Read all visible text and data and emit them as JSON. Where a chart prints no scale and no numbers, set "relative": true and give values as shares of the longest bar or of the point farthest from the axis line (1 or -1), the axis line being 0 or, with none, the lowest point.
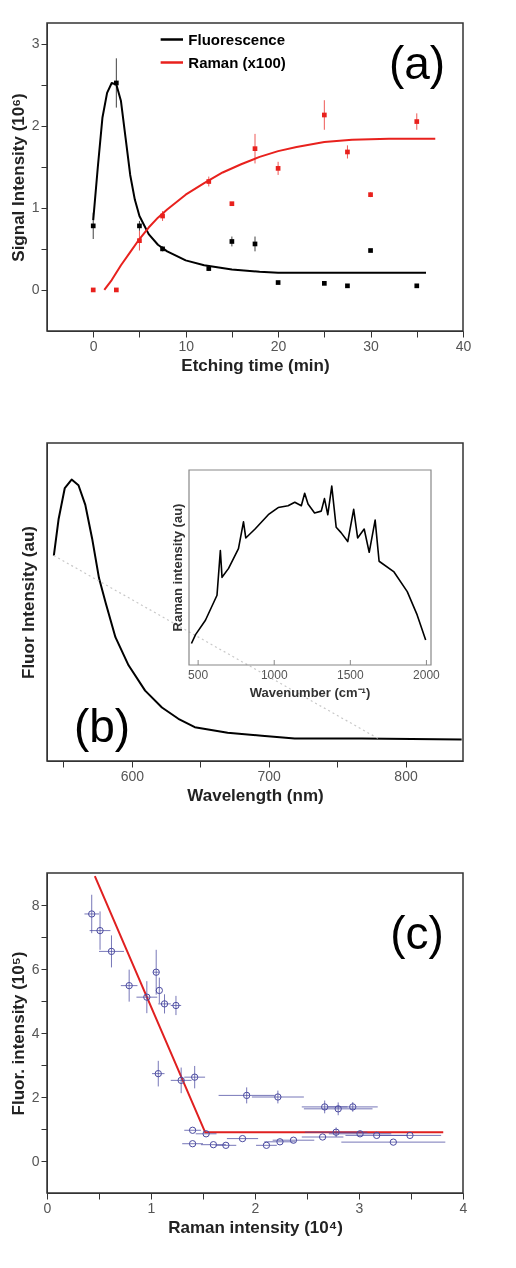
{
  "chart_data": [
    {
      "type": "line",
      "xlabel": "Etching time (min)",
      "ylabel": "Signal Intensity (10⁶)",
      "xlim": [
        -5,
        40
      ],
      "ylim": [
        -0.5,
        3.25
      ],
      "xticks": [
        0,
        {
          "value": 5,
          "label": null
        },
        10,
        {
          "value": 15,
          "label": null
        },
        20,
        {
          "value": 25,
          "label": null
        },
        30,
        {
          "value": 35,
          "label": null
        },
        40
      ],
      "yticks": [
        0,
        {
          "value": 0.5,
          "label": null
        },
        1,
        {
          "value": 1.5,
          "label": null
        },
        2,
        {
          "value": 2.5,
          "label": null
        },
        3
      ],
      "legend": "top",
      "annotations": [
        "(a)"
      ],
      "series": [
        {
          "name": "Fluorescence",
          "type": "line",
          "color": "#000000",
          "x": [
            0,
            0.5,
            1,
            1.5,
            2,
            2.5,
            3,
            3.5,
            4,
            4.5,
            5,
            6,
            7,
            8,
            10,
            12,
            15,
            18,
            20,
            25,
            30,
            36
          ],
          "values": [
            0.85,
            1.5,
            2.1,
            2.4,
            2.52,
            2.5,
            2.3,
            1.85,
            1.4,
            1.1,
            0.9,
            0.68,
            0.55,
            0.47,
            0.36,
            0.3,
            0.25,
            0.22,
            0.21,
            0.21,
            0.21,
            0.21
          ]
        },
        {
          "name": "Raman (x100)",
          "type": "line",
          "color": "#e8211d",
          "x": [
            1.2,
            2,
            3,
            4,
            5,
            6,
            7,
            8,
            10,
            12,
            14,
            16,
            18,
            20,
            22,
            25,
            28,
            32,
            37
          ],
          "values": [
            0,
            0.12,
            0.3,
            0.46,
            0.62,
            0.76,
            0.88,
            0.98,
            1.16,
            1.3,
            1.43,
            1.53,
            1.62,
            1.69,
            1.74,
            1.8,
            1.83,
            1.84,
            1.84
          ]
        },
        {
          "type": "scatter",
          "marker": "square",
          "color": "#000000",
          "x": [
            0,
            2.5,
            5,
            7.5,
            12.5,
            15,
            17.5,
            20,
            25,
            27.5,
            30,
            35
          ],
          "values": [
            0.78,
            2.52,
            0.78,
            0.5,
            0.26,
            0.59,
            0.56,
            0.09,
            0.08,
            0.05,
            0.48,
            0.05
          ],
          "errors": [
            0.16,
            0.3,
            0.06,
            0.03,
            0.03,
            0.06,
            0.09,
            null,
            null,
            null,
            null,
            null
          ]
        },
        {
          "type": "scatter",
          "marker": "square",
          "color": "#e8211d",
          "x": [
            0,
            2.5,
            5,
            7.5,
            12.5,
            15,
            17.5,
            20,
            25,
            27.5,
            30,
            35
          ],
          "values": [
            0,
            0,
            0.6,
            0.9,
            1.32,
            1.05,
            1.72,
            1.48,
            2.13,
            1.68,
            1.16,
            2.05
          ],
          "errors": [
            null,
            null,
            0.12,
            0.06,
            0.06,
            null,
            0.18,
            0.08,
            0.18,
            0.08,
            0.03,
            0.1
          ]
        }
      ]
    },
    {
      "type": "line",
      "relative": true,
      "xlabel": "Wavelength (nm)",
      "ylabel": "Fluor Intensity (au)",
      "xlim": [
        538,
        842
      ],
      "xticks": [
        {
          "value": 550,
          "label": null
        },
        600,
        {
          "value": 650,
          "label": null
        },
        700,
        {
          "value": 750,
          "label": null
        },
        800
      ],
      "annotations": [
        "(b)"
      ],
      "series": [
        {
          "color": "#000000",
          "x": [
            543,
            546.5,
            551,
            556,
            561,
            566,
            571,
            576,
            581,
            588,
            597.6,
            609.7,
            622,
            634,
            646,
            670,
            695,
            719,
            768,
            841
          ],
          "values": [
            0.73,
            0.86,
            0.97,
            1,
            0.98,
            0.91,
            0.79,
            0.65,
            0.56,
            0.44,
            0.34,
            0.25,
            0.19,
            0.15,
            0.12,
            0.1,
            0.09,
            0.08,
            0.08,
            0.076
          ]
        },
        {
          "color": "#c8c8c8",
          "line_style": "dotted",
          "x": [
            543,
            780
          ],
          "values": [
            0.73,
            0.08
          ]
        }
      ]
    },
    {
      "type": "line",
      "relative": true,
      "xlabel": "Wavenumber (cm⁻¹)",
      "ylabel": "Raman intensity (au)",
      "xlim": [
        440,
        2030
      ],
      "xticks": [
        500,
        1000,
        1500,
        2000
      ],
      "series": [
        {
          "color": "#000000",
          "x": [
            456,
            483,
            548,
            624,
            646,
            657,
            700,
            765,
            798,
            813,
            874,
            961,
            1026,
            1091,
            1135,
            1178,
            1200,
            1222,
            1265,
            1309,
            1330,
            1352,
            1378,
            1407,
            1439,
            1483,
            1522,
            1548,
            1591,
            1624,
            1663,
            1689,
            1787,
            1874,
            1939,
            1995
          ],
          "values": [
            0.12,
            0.17,
            0.25,
            0.39,
            0.64,
            0.49,
            0.54,
            0.65,
            0.8,
            0.71,
            0.76,
            0.84,
            0.88,
            0.89,
            0.91,
            0.89,
            0.96,
            0.9,
            0.85,
            0.86,
            0.93,
            0.84,
            1,
            0.77,
            0.74,
            0.69,
            0.87,
            0.71,
            0.76,
            0.63,
            0.81,
            0.58,
            0.52,
            0.41,
            0.28,
            0.14
          ]
        }
      ]
    },
    {
      "type": "scatter",
      "xlabel": "Raman intensity (10⁴)",
      "ylabel": "Fluor. intensity (10⁵)",
      "xlim": [
        0,
        4
      ],
      "ylim": [
        -1,
        9
      ],
      "xticks": [
        0,
        {
          "value": 0.5,
          "label": null
        },
        1,
        {
          "value": 1.5,
          "label": null
        },
        2,
        {
          "value": 2.5,
          "label": null
        },
        3,
        {
          "value": 3.5,
          "label": null
        },
        4
      ],
      "yticks": [
        0,
        {
          "value": 1,
          "label": null
        },
        2,
        {
          "value": 3,
          "label": null
        },
        4,
        {
          "value": 5,
          "label": null
        },
        6,
        {
          "value": 7,
          "label": null
        },
        8
      ],
      "annotations": [
        "(c)"
      ],
      "series": [
        {
          "type": "scatter",
          "marker": "circle",
          "color": "#4a4aa0",
          "x": [
            0.43,
            0.51,
            0.62,
            0.79,
            0.96,
            1.05,
            1.08,
            1.13,
            1.24,
            1.07,
            1.29,
            1.42,
            1.92,
            2.22,
            2.67,
            2.8,
            2.94,
            1.4,
            1.53,
            1.4,
            1.6,
            1.72,
            1.88,
            2.11,
            2.24,
            2.37,
            2.65,
            2.78,
            3.01,
            3.17,
            3.33,
            3.49
          ],
          "values": [
            7.72,
            7.2,
            6.55,
            5.48,
            5.12,
            5.9,
            5.33,
            4.91,
            4.86,
            2.73,
            2.52,
            2.62,
            2.05,
            2.0,
            1.69,
            1.63,
            1.69,
            0.96,
            0.85,
            0.54,
            0.51,
            0.49,
            0.7,
            0.49,
            0.6,
            0.65,
            0.75,
            0.9,
            0.85,
            0.8,
            0.59,
            0.8
          ],
          "errors": [
            0.6,
            0.6,
            0.5,
            0.5,
            0.5,
            0.7,
            0.4,
            0.3,
            0.3,
            0.4,
            0.4,
            0.35,
            0.25,
            0.2,
            0.2,
            0.2,
            0.15,
            null,
            null,
            null,
            null,
            null,
            null,
            null,
            null,
            null,
            null,
            0.15,
            null,
            null,
            null,
            null
          ],
          "xerrors": [
            0.07,
            0.1,
            0.12,
            0.08,
            0.1,
            0.03,
            null,
            0.06,
            0.05,
            0.06,
            0.1,
            0.1,
            0.27,
            0.25,
            0.22,
            0.33,
            0.24,
            0.08,
            0.1,
            0.1,
            0.12,
            0.1,
            0.15,
            0.1,
            0.15,
            0.2,
            0.2,
            0.3,
            0.3,
            0.3,
            0.5,
            0.3
          ]
        },
        {
          "type": "line",
          "color": "#e02020",
          "x": [
            0.46,
            1.52,
            3.81
          ],
          "values": [
            8.9,
            0.9,
            0.9
          ]
        }
      ]
    }
  ]
}
